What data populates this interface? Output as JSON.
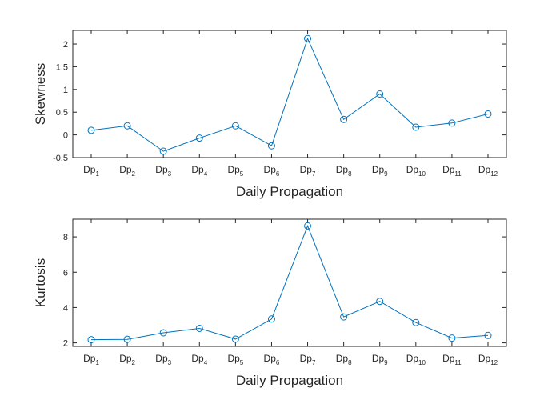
{
  "chart_data": [
    {
      "type": "line",
      "categories": [
        {
          "base": "Dp",
          "sub": "1"
        },
        {
          "base": "Dp",
          "sub": "2"
        },
        {
          "base": "Dp",
          "sub": "3"
        },
        {
          "base": "Dp",
          "sub": "4"
        },
        {
          "base": "Dp",
          "sub": "5"
        },
        {
          "base": "Dp",
          "sub": "6"
        },
        {
          "base": "Dp",
          "sub": "7"
        },
        {
          "base": "Dp",
          "sub": "8"
        },
        {
          "base": "Dp",
          "sub": "9"
        },
        {
          "base": "Dp",
          "sub": "10"
        },
        {
          "base": "Dp",
          "sub": "11"
        },
        {
          "base": "Dp",
          "sub": "12"
        }
      ],
      "values": [
        0.1,
        0.2,
        -0.36,
        -0.07,
        0.2,
        -0.24,
        2.12,
        0.34,
        0.9,
        0.17,
        0.26,
        0.46
      ],
      "xlabel": "Daily Propagation",
      "ylabel": "Skewness",
      "ylim": [
        -0.5,
        2.3
      ],
      "yticks": [
        -0.5,
        0,
        0.5,
        1,
        1.5,
        2
      ],
      "ytick_labels": [
        "-0.5",
        "0",
        "0.5",
        "1",
        "1.5",
        "2"
      ],
      "grid": false,
      "color": "#0072BD",
      "marker": "circle-open"
    },
    {
      "type": "line",
      "categories": [
        {
          "base": "Dp",
          "sub": "1"
        },
        {
          "base": "Dp",
          "sub": "2"
        },
        {
          "base": "Dp",
          "sub": "3"
        },
        {
          "base": "Dp",
          "sub": "4"
        },
        {
          "base": "Dp",
          "sub": "5"
        },
        {
          "base": "Dp",
          "sub": "6"
        },
        {
          "base": "Dp",
          "sub": "7"
        },
        {
          "base": "Dp",
          "sub": "8"
        },
        {
          "base": "Dp",
          "sub": "9"
        },
        {
          "base": "Dp",
          "sub": "10"
        },
        {
          "base": "Dp",
          "sub": "11"
        },
        {
          "base": "Dp",
          "sub": "12"
        }
      ],
      "values": [
        2.18,
        2.2,
        2.57,
        2.82,
        2.21,
        3.35,
        8.62,
        3.47,
        4.35,
        3.15,
        2.27,
        2.42
      ],
      "xlabel": "Daily Propagation",
      "ylabel": "Kurtosis",
      "ylim": [
        1.8,
        9
      ],
      "yticks": [
        2,
        4,
        6,
        8
      ],
      "ytick_labels": [
        "2",
        "4",
        "6",
        "8"
      ],
      "grid": false,
      "color": "#0072BD",
      "marker": "circle-open"
    }
  ]
}
